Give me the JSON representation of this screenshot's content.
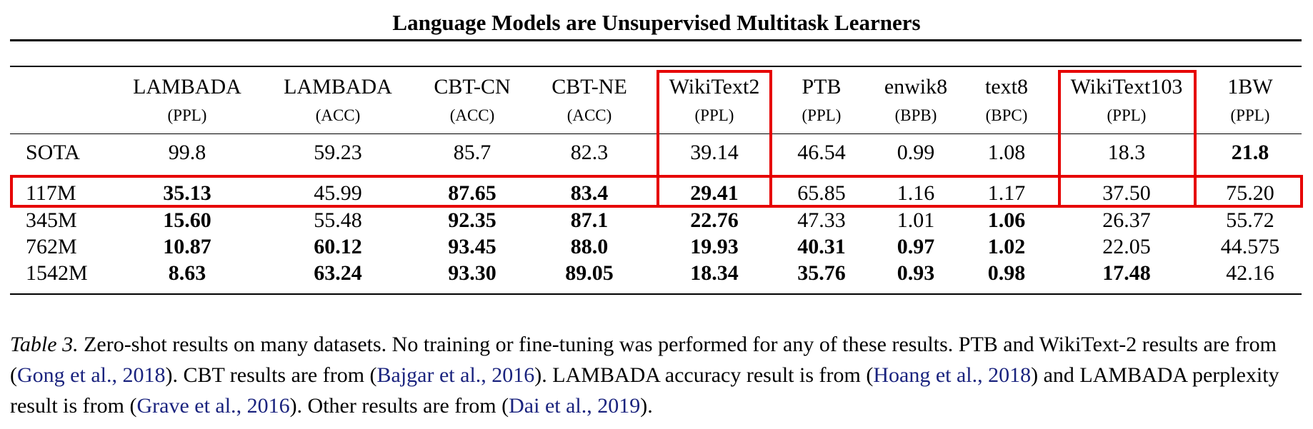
{
  "title": "Language Models are Unsupervised Multitask Learners",
  "table": {
    "columns": [
      {
        "name": "LAMBADA",
        "unit": "(PPL)"
      },
      {
        "name": "LAMBADA",
        "unit": "(ACC)"
      },
      {
        "name": "CBT-CN",
        "unit": "(ACC)"
      },
      {
        "name": "CBT-NE",
        "unit": "(ACC)"
      },
      {
        "name": "WikiText2",
        "unit": "(PPL)"
      },
      {
        "name": "PTB",
        "unit": "(PPL)"
      },
      {
        "name": "enwik8",
        "unit": "(BPB)"
      },
      {
        "name": "text8",
        "unit": "(BPC)"
      },
      {
        "name": "WikiText103",
        "unit": "(PPL)"
      },
      {
        "name": "1BW",
        "unit": "(PPL)"
      }
    ],
    "rows": [
      {
        "label": "SOTA",
        "values": [
          "99.8",
          "59.23",
          "85.7",
          "82.3",
          "39.14",
          "46.54",
          "0.99",
          "1.08",
          "18.3",
          "21.8"
        ],
        "bold": [
          false,
          false,
          false,
          false,
          false,
          false,
          false,
          false,
          false,
          true
        ]
      },
      {
        "label": "117M",
        "values": [
          "35.13",
          "45.99",
          "87.65",
          "83.4",
          "29.41",
          "65.85",
          "1.16",
          "1.17",
          "37.50",
          "75.20"
        ],
        "bold": [
          true,
          false,
          true,
          true,
          true,
          false,
          false,
          false,
          false,
          false
        ]
      },
      {
        "label": "345M",
        "values": [
          "15.60",
          "55.48",
          "92.35",
          "87.1",
          "22.76",
          "47.33",
          "1.01",
          "1.06",
          "26.37",
          "55.72"
        ],
        "bold": [
          true,
          false,
          true,
          true,
          true,
          false,
          false,
          true,
          false,
          false
        ]
      },
      {
        "label": "762M",
        "values": [
          "10.87",
          "60.12",
          "93.45",
          "88.0",
          "19.93",
          "40.31",
          "0.97",
          "1.02",
          "22.05",
          "44.575"
        ],
        "bold": [
          true,
          true,
          true,
          true,
          true,
          true,
          true,
          true,
          false,
          false
        ]
      },
      {
        "label": "1542M",
        "values": [
          "8.63",
          "63.24",
          "93.30",
          "89.05",
          "18.34",
          "35.76",
          "0.93",
          "0.98",
          "17.48",
          "42.16"
        ],
        "bold": [
          true,
          true,
          true,
          true,
          true,
          true,
          true,
          true,
          true,
          false
        ]
      }
    ]
  },
  "highlight_color": "#e60000",
  "link_color": "#1a237e",
  "caption": {
    "label": "Table 3.",
    "s1": " Zero-shot results on many datasets. No training or fine-tuning was performed for any of these results. PTB and WikiText-2 results are from (",
    "c1a": "Gong et al.",
    "c1y": "2018",
    "s2": "). CBT results are from (",
    "c2a": "Bajgar et al.",
    "c2y": "2016",
    "s3": "). LAMBADA accuracy result is from (",
    "c3a": "Hoang et al.",
    "c3y": "2018",
    "s4": ") and LAMBADA perplexity result is from (",
    "c4a": "Grave et al.",
    "c4y": "2016",
    "s5": "). Other results are from (",
    "c5a": "Dai et al.",
    "c5y": "2019",
    "s6": ")."
  }
}
